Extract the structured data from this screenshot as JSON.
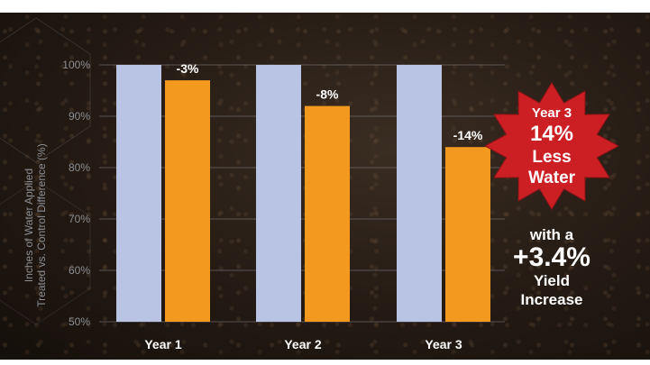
{
  "chart_data": {
    "type": "bar",
    "categories": [
      "Year 1",
      "Year 2",
      "Year 3"
    ],
    "series": [
      {
        "values": [
          100,
          100,
          100
        ],
        "color": "#b9c3e3"
      },
      {
        "values": [
          97,
          92,
          84
        ],
        "color": "#f39a1e"
      }
    ],
    "difference_labels": [
      "-3%",
      "-8%",
      "-14%"
    ],
    "yticks": [
      "100%",
      "90%",
      "80%",
      "70%",
      "60%",
      "50%"
    ],
    "ylim": [
      50,
      100
    ],
    "ylabel_line1": "Inches of Water Applied",
    "ylabel_line2": "Treated vs. Control Difference (%)",
    "grid": true
  },
  "callout_star": {
    "line1": "Year 3",
    "line2": "14%",
    "line3": "Less",
    "line4": "Water",
    "color": "#cc1f24"
  },
  "callout_text": {
    "line1": "with a",
    "line2": "+3.4%",
    "line3": "Yield",
    "line4": "Increase"
  }
}
